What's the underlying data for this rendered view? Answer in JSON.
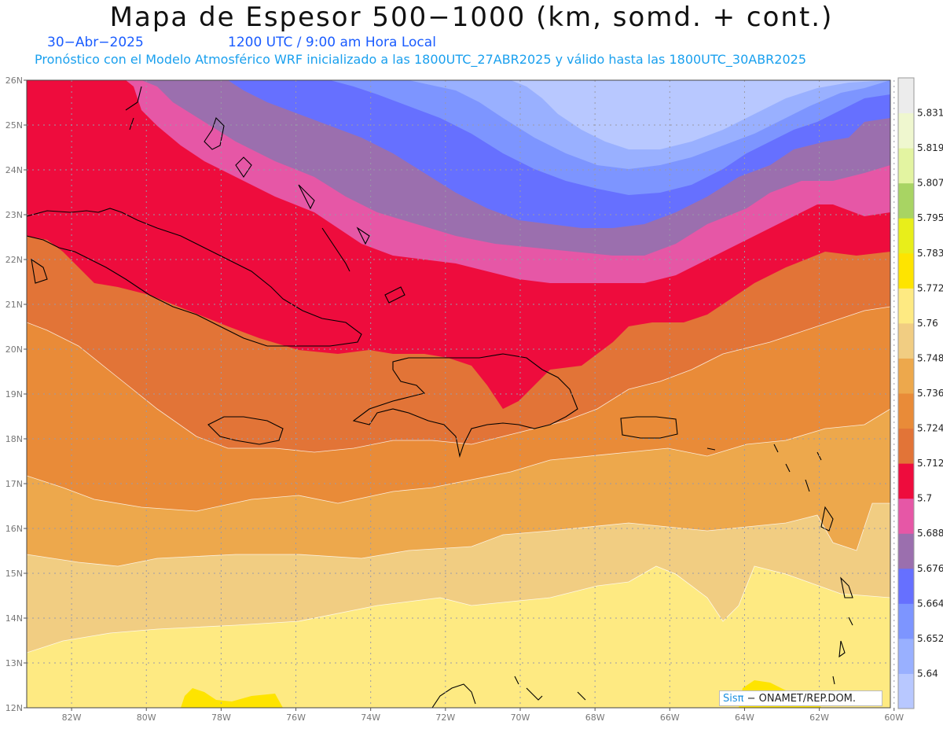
{
  "header": {
    "title": "Mapa de Espesor 500−1000 (km, somd. + cont.)",
    "date": "30−Abr−2025",
    "time": "1200 UTC / 9:00 am Hora Local",
    "subtitle": "Pronóstico con el Modelo Atmosférico WRF inicializado a las 1800UTC_27ABR2025 y válido hasta las  1800UTC_30ABR2025"
  },
  "map": {
    "lat_ticks": [
      "26N",
      "25N",
      "24N",
      "23N",
      "22N",
      "21N",
      "20N",
      "19N",
      "18N",
      "17N",
      "16N",
      "15N",
      "14N",
      "13N",
      "12N"
    ],
    "lon_ticks": [
      "82W",
      "80W",
      "78W",
      "76W",
      "74W",
      "72W",
      "70W",
      "68W",
      "66W",
      "64W",
      "62W",
      "60W"
    ],
    "lat_range": [
      12,
      26
    ],
    "lon_range": [
      -83.2,
      -60.1
    ],
    "grid": "dotted",
    "contour_color": "#ffffff",
    "coast_color": "#000000"
  },
  "colorbar": {
    "levels": [
      "5.64",
      "5.652",
      "5.664",
      "5.676",
      "5.688",
      "5.7",
      "5.712",
      "5.724",
      "5.736",
      "5.748",
      "5.76",
      "5.772",
      "5.783",
      "5.795",
      "5.807",
      "5.819",
      "5.831"
    ],
    "colors": [
      "#b8c8ff",
      "#99b0ff",
      "#7d95ff",
      "#6670ff",
      "#9b6fae",
      "#e657a6",
      "#ee0c3d",
      "#e27437",
      "#e98b38",
      "#eda84c",
      "#f1cd82",
      "#feea82",
      "#fee400",
      "#e8ee1a",
      "#a8d463",
      "#e3f4a1",
      "#eff7cf",
      "#ececec"
    ]
  },
  "footer": {
    "credit_brand": "Sisπ",
    "credit_text": "− ONAMET/REP.DOM."
  }
}
